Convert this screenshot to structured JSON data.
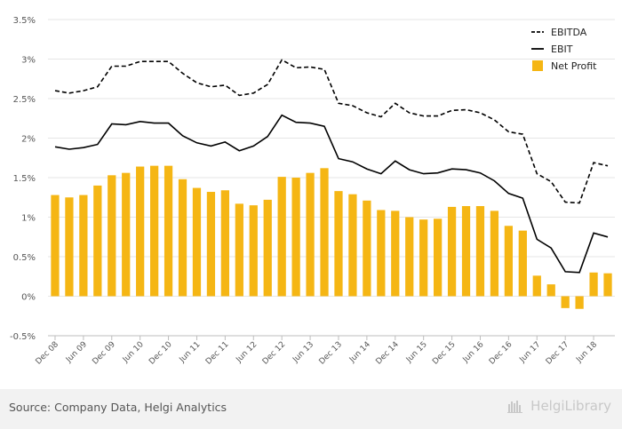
{
  "chart_data": {
    "type": "bar",
    "y_ticks": [
      "3.5%",
      "3%",
      "2.5%",
      "2%",
      "1.5%",
      "1%",
      "0.5%",
      "0%",
      "-0.5%"
    ],
    "ylim": [
      -0.5,
      3.5
    ],
    "x_labels": [
      "Dec 08",
      "Jun 09",
      "Dec 09",
      "Jun 10",
      "Dec 10",
      "Jun 11",
      "Dec 11",
      "Jun 12",
      "Dec 12",
      "Jun 13",
      "Dec 13",
      "Jun 14",
      "Dec 14",
      "Jun 15",
      "Dec 15",
      "Jun 16",
      "Dec 16",
      "Jun 17",
      "Dec 17",
      "Jun 18"
    ],
    "periods": 40,
    "series": [
      {
        "name": "EBITDA",
        "type": "line",
        "style": "dashed",
        "color": "#000000",
        "values": [
          2.6,
          2.57,
          2.6,
          2.65,
          2.91,
          2.91,
          2.97,
          2.97,
          2.97,
          2.82,
          2.7,
          2.65,
          2.67,
          2.54,
          2.57,
          2.68,
          2.99,
          2.89,
          2.9,
          2.87,
          2.44,
          2.41,
          2.32,
          2.27,
          2.44,
          2.32,
          2.28,
          2.28,
          2.35,
          2.36,
          2.32,
          2.23,
          2.08,
          2.05,
          1.55,
          1.45,
          1.19,
          1.18,
          1.69,
          1.65
        ]
      },
      {
        "name": "EBIT",
        "type": "line",
        "style": "solid",
        "color": "#000000",
        "values": [
          1.89,
          1.86,
          1.88,
          1.92,
          2.18,
          2.17,
          2.21,
          2.19,
          2.19,
          2.03,
          1.94,
          1.9,
          1.95,
          1.84,
          1.9,
          2.02,
          2.29,
          2.2,
          2.19,
          2.15,
          1.74,
          1.7,
          1.61,
          1.55,
          1.71,
          1.6,
          1.55,
          1.56,
          1.61,
          1.6,
          1.56,
          1.46,
          1.3,
          1.24,
          0.72,
          0.61,
          0.31,
          0.3,
          0.8,
          0.75
        ]
      },
      {
        "name": "Net Profit",
        "type": "bar",
        "color": "#f5b614",
        "values": [
          1.28,
          1.25,
          1.28,
          1.4,
          1.53,
          1.56,
          1.64,
          1.65,
          1.65,
          1.48,
          1.37,
          1.32,
          1.34,
          1.17,
          1.15,
          1.22,
          1.51,
          1.5,
          1.56,
          1.62,
          1.33,
          1.29,
          1.21,
          1.09,
          1.08,
          1.0,
          0.97,
          0.98,
          1.13,
          1.14,
          1.14,
          1.08,
          0.89,
          0.83,
          0.26,
          0.15,
          -0.15,
          -0.16,
          0.3,
          0.29
        ]
      }
    ]
  },
  "footer": {
    "source": "Source: Company Data, Helgi Analytics",
    "brand": "HelgiLibrary"
  },
  "colors": {
    "bar": "#f5b614",
    "line": "#000000",
    "grid": "#e6e6e6",
    "footer_bg": "#f2f2f2"
  }
}
